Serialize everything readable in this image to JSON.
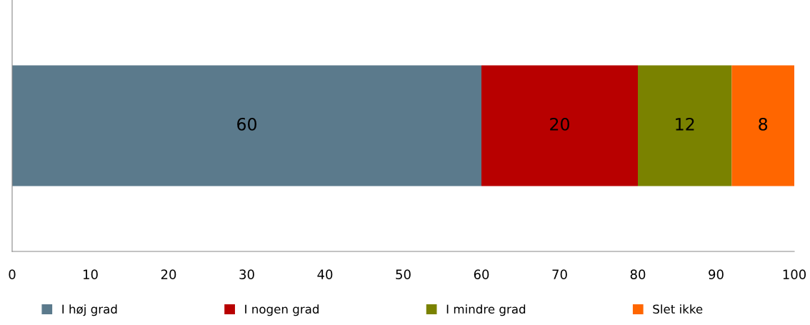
{
  "chart_data": {
    "type": "bar",
    "orientation": "horizontal",
    "stacked": true,
    "categories": [
      null
    ],
    "series": [
      {
        "name": "I høj grad",
        "color": "#5b7a8c",
        "values": [
          60
        ]
      },
      {
        "name": "I nogen grad",
        "color": "#b80000",
        "values": [
          20
        ]
      },
      {
        "name": "I mindre grad",
        "color": "#7a8200",
        "values": [
          12
        ]
      },
      {
        "name": "Slet ikke",
        "color": "#ff6600",
        "values": [
          8
        ]
      }
    ],
    "xlim": [
      0,
      100
    ],
    "xticks": [
      0,
      10,
      20,
      30,
      40,
      50,
      60,
      70,
      80,
      90,
      100
    ],
    "data_labels": true,
    "legend": "bottom",
    "grid": false,
    "tick_labels": "x"
  }
}
